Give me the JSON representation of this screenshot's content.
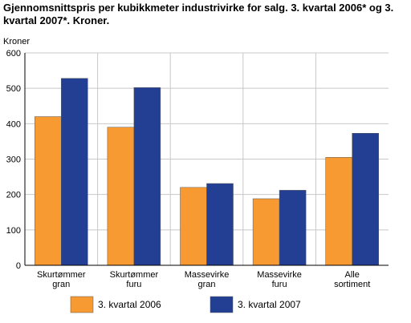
{
  "title": "Gjennomsnittspris per kubikkmeter industrivirke for salg. 3. kvartal 2006* og 3. kvartal 2007*. Kroner.",
  "chart_data": {
    "type": "bar",
    "title": "Gjennomsnittspris per kubikkmeter industrivirke for salg. 3. kvartal 2006* og 3. kvartal 2007*. Kroner.",
    "ylabel": "Kroner",
    "xlabel": "",
    "ylim": [
      0,
      600
    ],
    "yticks": [
      0,
      100,
      200,
      300,
      400,
      500,
      600
    ],
    "grid": true,
    "legend_position": "bottom",
    "categories": [
      [
        "Skurtømmer",
        "gran"
      ],
      [
        "Skurtømmer",
        "furu"
      ],
      [
        "Massevirke",
        "gran"
      ],
      [
        "Massevirke",
        "furu"
      ],
      [
        "Alle",
        "sortiment"
      ]
    ],
    "series": [
      {
        "name": "3. kvartal 2006",
        "color": "#f79a32",
        "values": [
          420,
          390,
          220,
          188,
          305
        ]
      },
      {
        "name": "3. kvartal 2007",
        "color": "#233f94",
        "values": [
          528,
          502,
          231,
          212,
          373
        ]
      }
    ]
  }
}
